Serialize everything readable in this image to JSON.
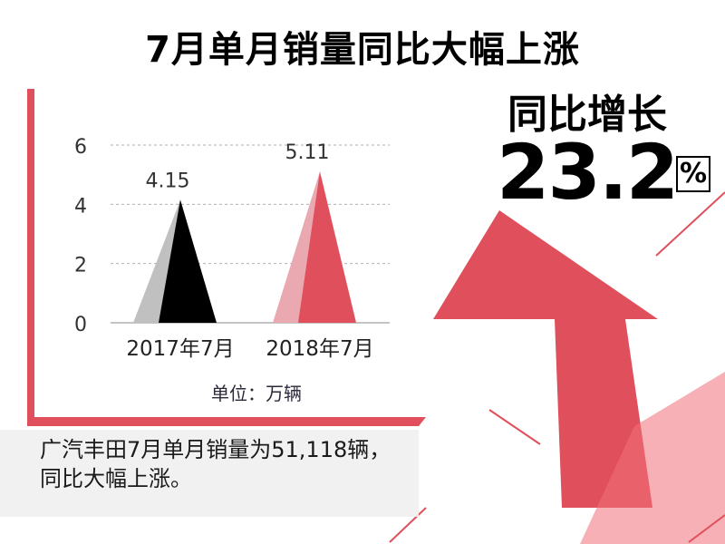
{
  "title": "7月单月销量同比大幅上涨",
  "stat": {
    "label": "同比增长",
    "value": "23.2",
    "unit": "%"
  },
  "note": "广汽丰田7月单月销量为51,118辆，同比大幅上涨。",
  "colors": {
    "accent": "#e0505c",
    "accent_light": "#eaa8b0",
    "series_2017_dark": "#000000",
    "series_2017_light": "#c0c0c0"
  },
  "chart_data": {
    "type": "bar",
    "categories": [
      "2017年7月",
      "2018年7月"
    ],
    "values": [
      4.15,
      5.11
    ],
    "data_labels": [
      "4.15",
      "5.11"
    ],
    "yticks": [
      "0",
      "2",
      "4",
      "6"
    ],
    "ylim": [
      0,
      6
    ],
    "unit_label": "单位：万辆",
    "grid": true,
    "bar_shape": "triangle"
  }
}
